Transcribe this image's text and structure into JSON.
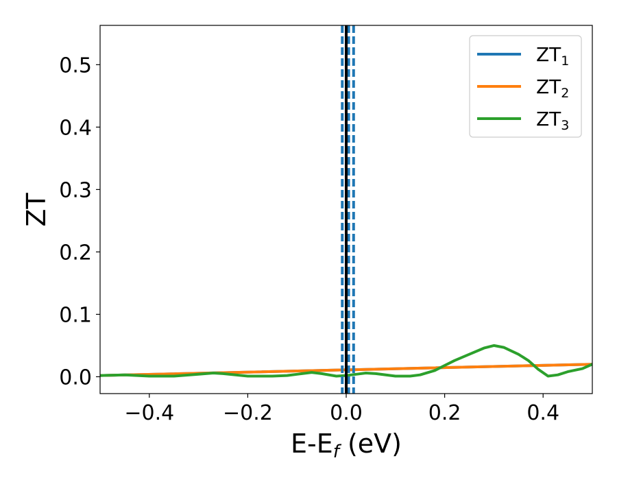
{
  "chart_data": {
    "type": "line",
    "xlabel": "E-E",
    "xlabel_sub": "f",
    "xlabel_unit": " (eV)",
    "ylabel": "ZT",
    "xlim": [
      -0.5,
      0.5
    ],
    "ylim": [
      -0.027,
      0.563
    ],
    "xticks": [
      -0.4,
      -0.2,
      0.0,
      0.2,
      0.4
    ],
    "xtick_labels": [
      "−0.4",
      "−0.2",
      "0.0",
      "0.2",
      "0.4"
    ],
    "yticks": [
      0.0,
      0.1,
      0.2,
      0.3,
      0.4,
      0.5
    ],
    "ytick_labels": [
      "0.0",
      "0.1",
      "0.2",
      "0.3",
      "0.4",
      "0.5"
    ],
    "grid": false,
    "legend_position": "top-right",
    "series": [
      {
        "name": "ZT",
        "name_sub": "1",
        "color": "#1f77b4",
        "x": [
          -0.5,
          0.5
        ],
        "y": [
          0.002,
          0.02
        ]
      },
      {
        "name": "ZT",
        "name_sub": "2",
        "color": "#ff7f0e",
        "x": [
          -0.5,
          0.5
        ],
        "y": [
          0.002,
          0.02
        ]
      },
      {
        "name": "ZT",
        "name_sub": "3",
        "color": "#2ca02c",
        "x": [
          -0.5,
          -0.45,
          -0.4,
          -0.35,
          -0.3,
          -0.27,
          -0.25,
          -0.2,
          -0.15,
          -0.12,
          -0.1,
          -0.07,
          -0.05,
          -0.02,
          0.0,
          0.02,
          0.04,
          0.06,
          0.1,
          0.13,
          0.15,
          0.18,
          0.2,
          0.22,
          0.25,
          0.28,
          0.3,
          0.32,
          0.35,
          0.37,
          0.39,
          0.41,
          0.43,
          0.45,
          0.48,
          0.5
        ],
        "y": [
          0.002,
          0.003,
          0.001,
          0.001,
          0.004,
          0.006,
          0.005,
          0.001,
          0.001,
          0.002,
          0.004,
          0.007,
          0.005,
          0.001,
          0.002,
          0.004,
          0.006,
          0.005,
          0.001,
          0.001,
          0.003,
          0.01,
          0.018,
          0.026,
          0.036,
          0.046,
          0.05,
          0.047,
          0.036,
          0.026,
          0.012,
          0.001,
          0.003,
          0.008,
          0.013,
          0.02
        ]
      }
    ],
    "vlines": [
      {
        "x": 0.0,
        "color": "#000000",
        "style": "solid"
      },
      {
        "x": -0.008,
        "color": "#1f77b4",
        "style": "dashed"
      },
      {
        "x": 0.005,
        "color": "#1f77b4",
        "style": "dashed"
      },
      {
        "x": 0.015,
        "color": "#1f77b4",
        "style": "dashed"
      }
    ]
  }
}
